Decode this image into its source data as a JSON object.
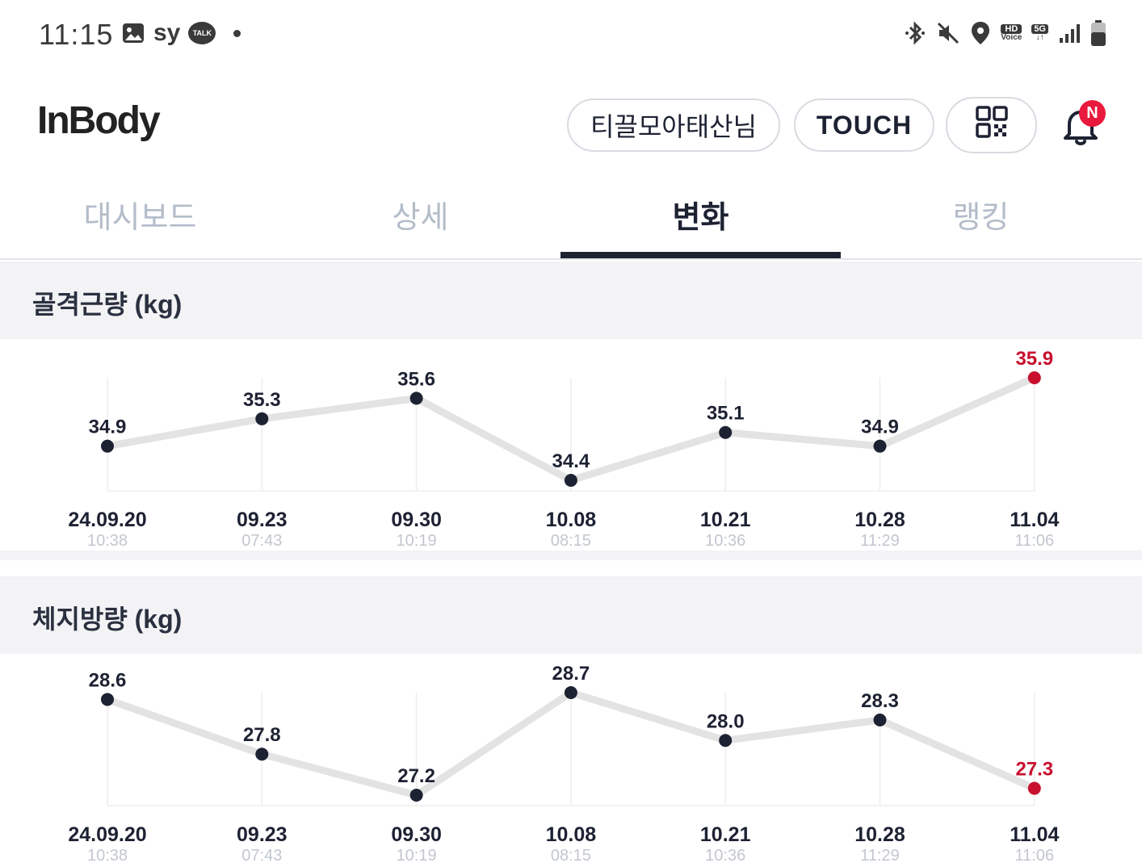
{
  "status_bar": {
    "time": "11:15",
    "carrier": "sy",
    "kakao_label": "TALK",
    "hd_label": "HD",
    "voice_label": "Voice",
    "fiveg_label": "5G",
    "icons": [
      "gallery-icon",
      "kakaotalk-icon",
      "bluetooth-icon",
      "mute-icon",
      "location-icon",
      "hd-voice-icon",
      "5g-icon",
      "signal-icon",
      "battery-icon"
    ]
  },
  "header": {
    "logo": "InBody",
    "user_name": "티끌모아태산님",
    "touch_label": "TOUCH",
    "notification_badge": "N"
  },
  "tabs": [
    {
      "label": "대시보드",
      "active": false
    },
    {
      "label": "상세",
      "active": false
    },
    {
      "label": "변화",
      "active": true
    },
    {
      "label": "랭킹",
      "active": false
    }
  ],
  "colors": {
    "accent": "#1d2233",
    "highlight": "#c8102e",
    "line": "#e3e3e3",
    "section_bg": "#f3f3f5",
    "muted_text": "#b3bcc9"
  },
  "sections": [
    {
      "title": "골격근량 (kg)",
      "chart_data": {
        "type": "line",
        "title": "골격근량 (kg)",
        "categories": [
          "24.09.20",
          "09.23",
          "09.30",
          "10.08",
          "10.21",
          "10.28",
          "11.04"
        ],
        "times": [
          "10:38",
          "07:43",
          "10:19",
          "08:15",
          "10:36",
          "11:29",
          "11:06"
        ],
        "values": [
          34.9,
          35.3,
          35.6,
          34.4,
          35.1,
          34.9,
          35.9
        ],
        "labels": [
          "34.9",
          "35.3",
          "35.6",
          "34.4",
          "35.1",
          "34.9",
          "35.9"
        ],
        "highlight_last": true
      }
    },
    {
      "title": "체지방량 (kg)",
      "chart_data": {
        "type": "line",
        "title": "체지방량 (kg)",
        "categories": [
          "24.09.20",
          "09.23",
          "09.30",
          "10.08",
          "10.21",
          "10.28",
          "11.04"
        ],
        "times": [
          "10:38",
          "07:43",
          "10:19",
          "08:15",
          "10:36",
          "11:29",
          "11:06"
        ],
        "values": [
          28.6,
          27.8,
          27.2,
          28.7,
          28.0,
          28.3,
          27.3
        ],
        "labels": [
          "28.6",
          "27.8",
          "27.2",
          "28.7",
          "28.0",
          "28.3",
          "27.3"
        ],
        "highlight_last": true
      }
    }
  ]
}
